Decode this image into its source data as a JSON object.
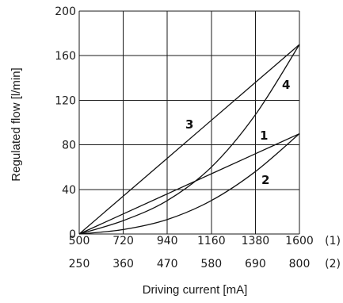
{
  "chart_data": {
    "type": "line",
    "ylabel": "Regulated flow [l/min]",
    "xlabel": "Driving current [mA]",
    "ylim": [
      0,
      200
    ],
    "xlim": [
      500,
      1600
    ],
    "grid": true,
    "y_ticks": [
      "0",
      "40",
      "80",
      "120",
      "160",
      "200"
    ],
    "x_ticks_row1": [
      "500",
      "720",
      "940",
      "1160",
      "1380",
      "1600"
    ],
    "x_ticks_row2": [
      "250",
      "360",
      "470",
      "580",
      "690",
      "800"
    ],
    "row_markers": [
      "(1)",
      "(2)"
    ],
    "series": [
      {
        "name": "1",
        "x": [
          500,
          720,
          940,
          1160,
          1380,
          1600
        ],
        "y": [
          0,
          18,
          36,
          54,
          72,
          90
        ]
      },
      {
        "name": "2",
        "x": [
          500,
          720,
          940,
          1160,
          1380,
          1600
        ],
        "y": [
          0,
          4,
          13,
          30,
          56,
          90
        ]
      },
      {
        "name": "3",
        "x": [
          500,
          720,
          940,
          1160,
          1380,
          1600
        ],
        "y": [
          0,
          34,
          68,
          102,
          136,
          170
        ]
      },
      {
        "name": "4",
        "x": [
          500,
          720,
          940,
          1160,
          1380,
          1600
        ],
        "y": [
          0,
          12,
          30,
          60,
          107,
          170
        ]
      }
    ]
  }
}
